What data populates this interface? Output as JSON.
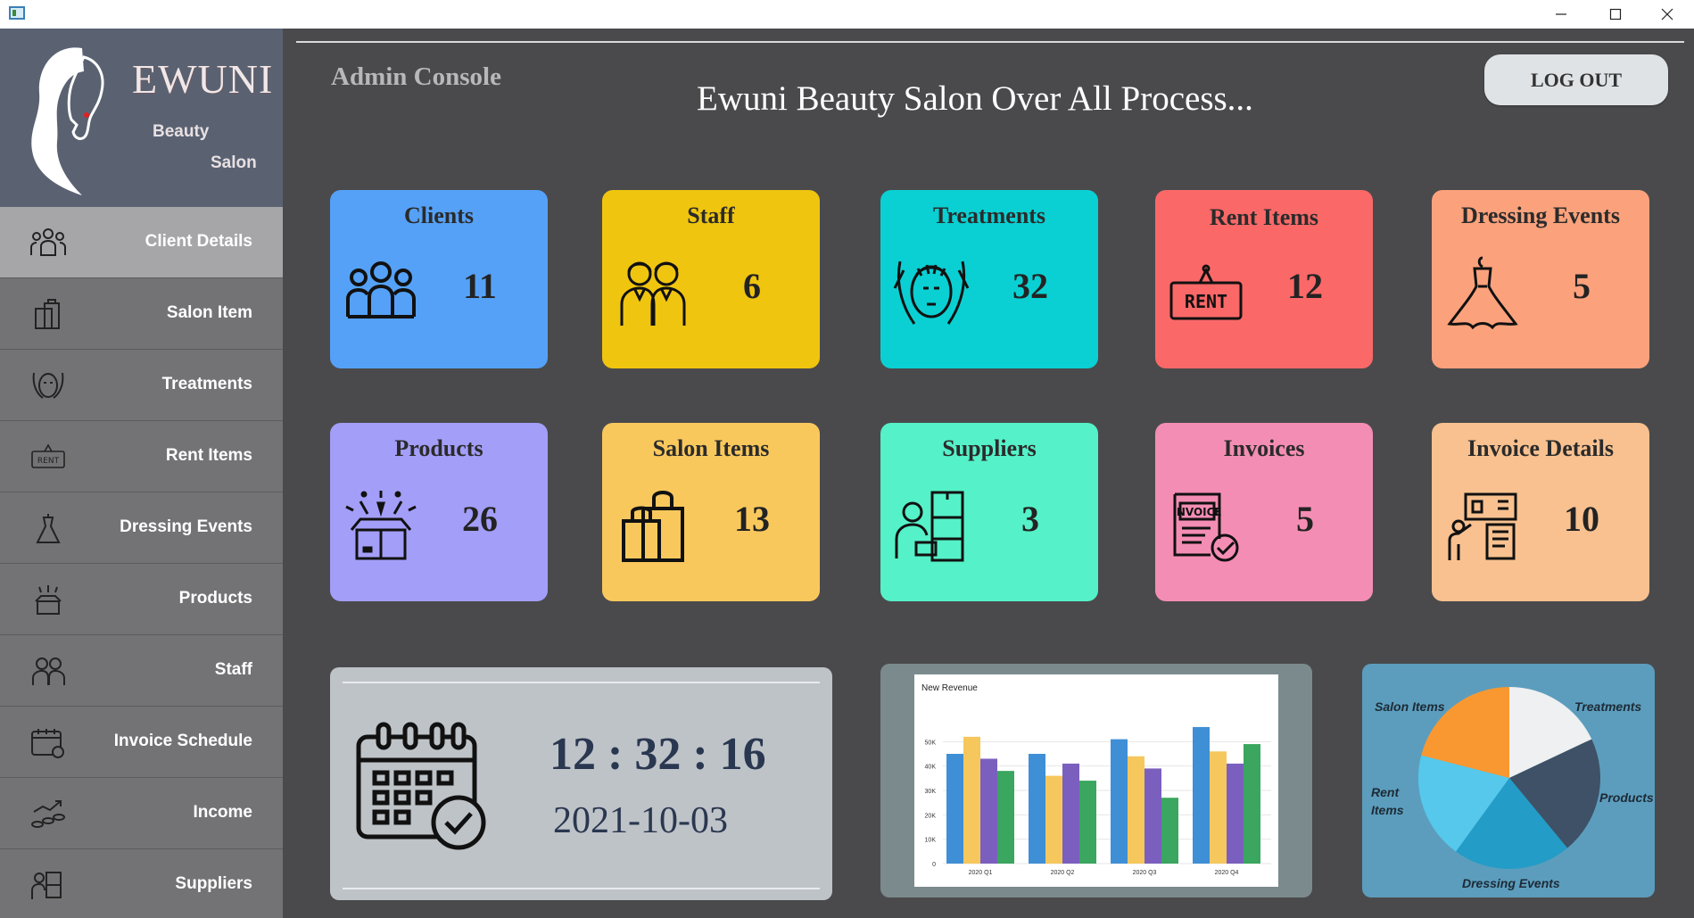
{
  "window": {
    "icon": "app-window-icon"
  },
  "sidebar": {
    "brand": "EWUNI",
    "brand_sub1": "Beauty",
    "brand_sub2": "Salon",
    "items": [
      {
        "label": "Client Details",
        "icon": "people-group-icon"
      },
      {
        "label": "Salon Item",
        "icon": "shopping-bag-icon"
      },
      {
        "label": "Treatments",
        "icon": "face-mask-icon"
      },
      {
        "label": "Rent Items",
        "icon": "rent-sign-icon"
      },
      {
        "label": "Dressing Events",
        "icon": "dress-icon"
      },
      {
        "label": "Products",
        "icon": "gift-box-icon"
      },
      {
        "label": "Staff",
        "icon": "staff-icon"
      },
      {
        "label": "Invoice Schedule",
        "icon": "calendar-icon"
      },
      {
        "label": "Income",
        "icon": "coins-growth-icon"
      },
      {
        "label": "Suppliers",
        "icon": "supplier-icon"
      }
    ]
  },
  "header": {
    "section": "Admin Console",
    "title": "Ewuni Beauty Salon Over All Process...",
    "logout": "LOG OUT"
  },
  "cards": [
    {
      "title": "Clients",
      "value": "11",
      "color": "#55a1f7",
      "icon": "people-group-icon"
    },
    {
      "title": "Staff",
      "value": "6",
      "color": "#f0c50f",
      "icon": "staff-icon"
    },
    {
      "title": "Treatments",
      "value": "32",
      "color": "#0ad0d3",
      "icon": "face-mask-icon"
    },
    {
      "title": "Rent Items",
      "value": "12",
      "color": "#fa6868",
      "icon": "rent-sign-icon"
    },
    {
      "title": "Dressing Events",
      "value": "5",
      "color": "#fba27c",
      "icon": "dress-icon"
    },
    {
      "title": "Products",
      "value": "26",
      "color": "#a39ef8",
      "icon": "gift-box-icon"
    },
    {
      "title": "Salon Items",
      "value": "13",
      "color": "#f9c85d",
      "icon": "shopping-bag-icon"
    },
    {
      "title": "Suppliers",
      "value": "3",
      "color": "#55f1c8",
      "icon": "supplier-icon"
    },
    {
      "title": "Invoices",
      "value": "5",
      "color": "#f48db4",
      "icon": "invoice-icon"
    },
    {
      "title": "Invoice Details",
      "value": "10",
      "color": "#f8c18f",
      "icon": "invoice-details-icon"
    }
  ],
  "clock": {
    "time": "12 : 32 : 16",
    "date": "2021-10-03"
  },
  "chart_data": [
    {
      "type": "bar",
      "title": "New Revenue",
      "categories": [
        "2020 Q1",
        "2020 Q2",
        "2020 Q3",
        "2020 Q4"
      ],
      "series": [
        {
          "values": [
            45000,
            45000,
            51000,
            56000
          ],
          "color": "#3f8fd6"
        },
        {
          "values": [
            52000,
            36000,
            44000,
            46000
          ],
          "color": "#f6c75c"
        },
        {
          "values": [
            43000,
            41000,
            39000,
            41000
          ],
          "color": "#7b5fbf"
        },
        {
          "values": [
            38000,
            34000,
            27000,
            49000
          ],
          "color": "#3aa65f"
        }
      ],
      "ylim": [
        0,
        60000
      ],
      "yticks": [
        "0",
        "10K",
        "20K",
        "30K",
        "40K",
        "50K"
      ],
      "grid": true
    },
    {
      "type": "pie",
      "categories": [
        "Treatments",
        "Products",
        "Dressing Events",
        "Rent Items",
        "Salon Items"
      ],
      "values": [
        18,
        21,
        21,
        19,
        21
      ],
      "colors": [
        "#eef0f1",
        "#3e5166",
        "#239cc7",
        "#56c8ec",
        "#f99830"
      ]
    }
  ]
}
